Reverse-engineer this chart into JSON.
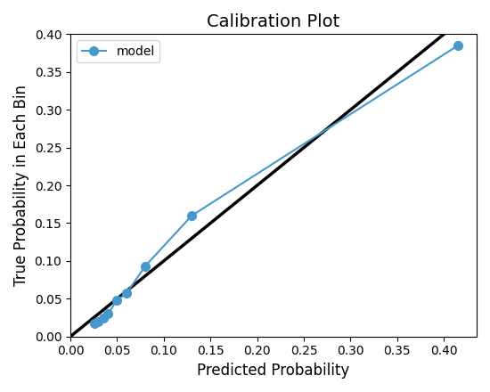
{
  "title": "Calibration Plot",
  "xlabel": "Predicted Probability",
  "ylabel": "True Probability in Each Bin",
  "model_x": [
    0.026,
    0.03,
    0.035,
    0.04,
    0.05,
    0.06,
    0.08,
    0.13,
    0.415
  ],
  "model_y": [
    0.017,
    0.02,
    0.025,
    0.03,
    0.048,
    0.057,
    0.093,
    0.16,
    0.385
  ],
  "line_color": "#4499cc",
  "diagonal_color": "black",
  "legend_label": "model",
  "xlim": [
    0.0,
    0.435
  ],
  "ylim": [
    0.0,
    0.4
  ],
  "xticks": [
    0.0,
    0.05,
    0.1,
    0.15,
    0.2,
    0.25,
    0.3,
    0.35,
    0.4
  ],
  "yticks": [
    0.0,
    0.05,
    0.1,
    0.15,
    0.2,
    0.25,
    0.3,
    0.35,
    0.4
  ],
  "marker": "o",
  "markersize": 7,
  "linewidth": 1.5,
  "diag_linewidth": 2.5,
  "figwidth": 5.5,
  "figheight": 4.4
}
